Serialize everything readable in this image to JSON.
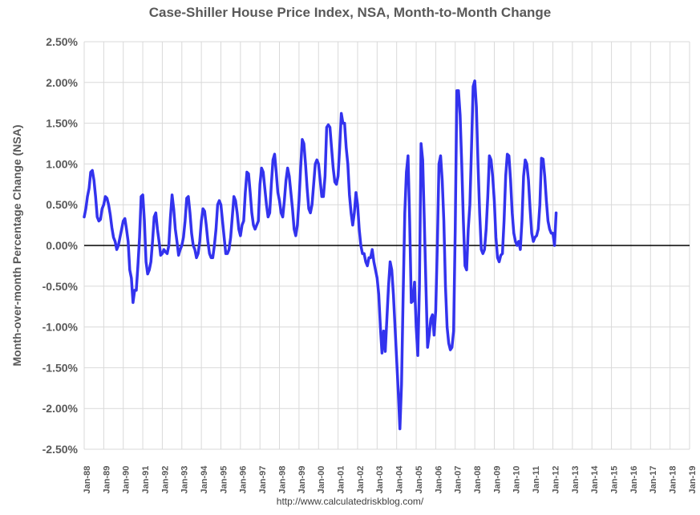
{
  "chart_data": {
    "type": "line",
    "title": "Case-Shiller House Price Index, NSA, Month-to-Month Change",
    "xlabel": "",
    "ylabel": "Month-over-month Percentage Change (NSA)",
    "ylim": [
      -2.5,
      2.5
    ],
    "y_ticks": [
      "2.50%",
      "2.00%",
      "1.50%",
      "1.00%",
      "0.50%",
      "0.00%",
      "-0.50%",
      "-1.00%",
      "-1.50%",
      "-2.00%",
      "-2.50%"
    ],
    "y_tick_values": [
      2.5,
      2.0,
      1.5,
      1.0,
      0.5,
      0.0,
      -0.5,
      -1.0,
      -1.5,
      -2.0,
      -2.5
    ],
    "x_ticks": [
      "Jan-88",
      "Jan-89",
      "Jan-90",
      "Jan-91",
      "Jan-92",
      "Jan-93",
      "Jan-94",
      "Jan-95",
      "Jan-96",
      "Jan-97",
      "Jan-98",
      "Jan-99",
      "Jan-00",
      "Jan-01",
      "Jan-02",
      "Jan-03",
      "Jan-04",
      "Jan-05",
      "Jan-06",
      "Jan-07",
      "Jan-08",
      "Jan-09",
      "Jan-10",
      "Jan-11",
      "Jan-12",
      "Jan-13",
      "Jan-14",
      "Jan-15",
      "Jan-16",
      "Jan-17",
      "Jan-18",
      "Jan-19"
    ],
    "x_start": "Jan-88",
    "grid": true,
    "colors": {
      "line": "#3333ee",
      "grid": "#d9d9d9",
      "zero_line": "#000000"
    },
    "series": [
      {
        "values": [
          0.35,
          0.45,
          0.6,
          0.7,
          0.9,
          0.92,
          0.8,
          0.6,
          0.35,
          0.3,
          0.32,
          0.45,
          0.5,
          0.6,
          0.58,
          0.5,
          0.38,
          0.22,
          0.1,
          0.05,
          -0.05,
          0.0,
          0.1,
          0.2,
          0.3,
          0.33,
          0.2,
          0.05,
          -0.3,
          -0.4,
          -0.7,
          -0.55,
          -0.55,
          -0.25,
          0.1,
          0.6,
          0.62,
          0.3,
          -0.2,
          -0.35,
          -0.3,
          -0.2,
          0.05,
          0.35,
          0.4,
          0.2,
          0.05,
          -0.12,
          -0.1,
          -0.05,
          -0.08,
          -0.1,
          0.0,
          0.35,
          0.62,
          0.45,
          0.2,
          0.05,
          -0.12,
          -0.05,
          0.0,
          0.1,
          0.3,
          0.58,
          0.6,
          0.4,
          0.15,
          0.0,
          -0.05,
          -0.15,
          -0.1,
          0.05,
          0.3,
          0.45,
          0.42,
          0.25,
          0.05,
          -0.1,
          -0.15,
          -0.15,
          0.0,
          0.2,
          0.5,
          0.55,
          0.5,
          0.3,
          0.1,
          -0.1,
          -0.1,
          -0.05,
          0.1,
          0.35,
          0.6,
          0.55,
          0.4,
          0.2,
          0.12,
          0.25,
          0.3,
          0.65,
          0.9,
          0.88,
          0.65,
          0.4,
          0.25,
          0.2,
          0.25,
          0.3,
          0.75,
          0.95,
          0.9,
          0.7,
          0.5,
          0.35,
          0.4,
          0.75,
          1.05,
          1.12,
          0.9,
          0.65,
          0.55,
          0.4,
          0.35,
          0.55,
          0.8,
          0.95,
          0.85,
          0.65,
          0.45,
          0.2,
          0.12,
          0.25,
          0.55,
          0.95,
          1.3,
          1.25,
          1.0,
          0.7,
          0.45,
          0.4,
          0.5,
          0.75,
          1.0,
          1.05,
          1.0,
          0.8,
          0.6,
          0.6,
          0.85,
          1.45,
          1.48,
          1.45,
          1.2,
          0.95,
          0.78,
          0.75,
          0.85,
          1.2,
          1.62,
          1.5,
          1.5,
          1.2,
          1.0,
          0.62,
          0.4,
          0.25,
          0.4,
          0.65,
          0.5,
          0.2,
          0.0,
          -0.1,
          -0.1,
          -0.2,
          -0.25,
          -0.15,
          -0.15,
          -0.05,
          -0.2,
          -0.3,
          -0.4,
          -0.6,
          -1.0,
          -1.32,
          -1.05,
          -1.3,
          -0.9,
          -0.5,
          -0.2,
          -0.3,
          -0.6,
          -1.0,
          -1.4,
          -1.8,
          -2.25,
          -1.7,
          -0.6,
          0.4,
          0.9,
          1.1,
          0.3,
          -0.7,
          -0.68,
          -0.45,
          -1.0,
          -1.35,
          -0.5,
          1.25,
          1.05,
          0.3,
          -0.5,
          -1.25,
          -1.1,
          -0.9,
          -0.85,
          -1.1,
          -0.8,
          0.0,
          1.0,
          1.1,
          0.8,
          0.3,
          -0.5,
          -1.0,
          -1.2,
          -1.28,
          -1.25,
          -1.05,
          0.2,
          1.9,
          1.9,
          1.6,
          1.0,
          0.3,
          -0.25,
          -0.3,
          0.2,
          0.5,
          1.2,
          1.95,
          2.02,
          1.7,
          1.0,
          0.4,
          -0.05,
          -0.1,
          -0.05,
          0.2,
          0.6,
          1.1,
          1.05,
          0.85,
          0.55,
          0.1,
          -0.15,
          -0.2,
          -0.12,
          -0.1,
          0.3,
          0.85,
          1.12,
          1.1,
          0.8,
          0.4,
          0.15,
          0.05,
          0.0,
          0.05,
          -0.05,
          0.3,
          0.85,
          1.05,
          1.0,
          0.8,
          0.45,
          0.15,
          0.05,
          0.1,
          0.12,
          0.2,
          0.5,
          1.07,
          1.06,
          0.85,
          0.55,
          0.3,
          0.2,
          0.15,
          0.15,
          0.0,
          0.4
        ]
      }
    ]
  },
  "source_text": "http://www.calculatedriskblog.com/"
}
